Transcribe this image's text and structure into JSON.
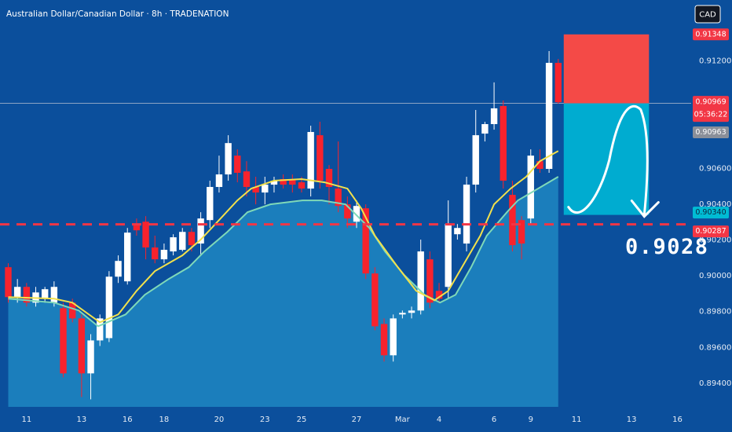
{
  "chart_data": {
    "type": "candlestick",
    "title": "Australian Dollar/Canadian Dollar · 8h · TRADENATION",
    "currency": "CAD",
    "x": [
      -2,
      -1,
      0,
      1,
      2,
      3,
      4,
      5,
      6,
      7,
      8,
      9,
      10,
      11,
      12,
      13,
      14,
      15,
      16,
      17,
      18,
      19,
      20,
      21,
      22,
      23,
      24,
      25,
      26,
      27,
      28,
      29,
      30,
      31,
      32,
      33,
      34,
      35,
      36,
      37,
      38,
      39,
      40,
      41,
      42,
      43,
      44,
      45,
      46,
      47,
      48,
      49,
      50,
      51,
      52,
      53,
      54,
      55,
      56,
      57,
      58
    ],
    "open": [
      0.90048,
      0.89881,
      0.89938,
      0.8985,
      0.89872,
      0.8985,
      0.89819,
      0.8985,
      0.89762,
      0.89455,
      0.89639,
      0.89652,
      0.89995,
      0.89969,
      0.90289,
      0.90302,
      0.90158,
      0.90092,
      0.90136,
      0.90145,
      0.90245,
      0.9018,
      0.90311,
      0.90496,
      0.90566,
      0.90671,
      0.90583,
      0.90496,
      0.90465,
      0.90509,
      0.9054,
      0.9054,
      0.90522,
      0.90487,
      0.90785,
      0.90597,
      0.90487,
      0.90399,
      0.90302,
      0.90377,
      0.90013,
      0.89731,
      0.89556,
      0.89784,
      0.89793,
      0.89806,
      0.90092,
      0.89916,
      0.89938,
      0.90232,
      0.9018,
      0.90509,
      0.90794,
      0.90847,
      0.90948,
      0.90452,
      0.90311,
      0.9032,
      0.9064,
      0.90597,
      0.91189
    ],
    "high": [
      0.9007,
      0.89982,
      0.8996,
      0.89938,
      0.89938,
      0.89969,
      0.8985,
      0.89872,
      0.89784,
      0.89674,
      0.89784,
      0.90026,
      0.90114,
      0.90267,
      0.9032,
      0.90333,
      0.90224,
      0.9018,
      0.90232,
      0.90267,
      0.90267,
      0.90355,
      0.90531,
      0.90671,
      0.90785,
      0.90706,
      0.9064,
      0.90553,
      0.90553,
      0.90553,
      0.90566,
      0.90566,
      0.90553,
      0.90838,
      0.9086,
      0.90618,
      0.9075,
      0.90443,
      0.90421,
      0.90399,
      0.90048,
      0.89762,
      0.89784,
      0.89806,
      0.89828,
      0.90202,
      0.90136,
      0.8996,
      0.90421,
      0.90289,
      0.90553,
      0.90926,
      0.9086,
      0.9108,
      0.90979,
      0.90531,
      0.90333,
      0.90706,
      0.90706,
      0.91255,
      0.91211
    ],
    "low": [
      0.8985,
      0.8985,
      0.89828,
      0.89828,
      0.8985,
      0.89828,
      0.89433,
      0.8974,
      0.89323,
      0.8931,
      0.89608,
      0.8963,
      0.8996,
      0.89951,
      0.90224,
      0.90092,
      0.9007,
      0.9007,
      0.90114,
      0.90136,
      0.90136,
      0.90114,
      0.90267,
      0.90465,
      0.90531,
      0.90522,
      0.90443,
      0.90399,
      0.90399,
      0.90465,
      0.90487,
      0.90465,
      0.90465,
      0.90443,
      0.90487,
      0.90399,
      0.90355,
      0.90267,
      0.90267,
      0.89982,
      0.89696,
      0.89521,
      0.89521,
      0.89762,
      0.89762,
      0.89784,
      0.89819,
      0.8985,
      0.89872,
      0.90202,
      0.90136,
      0.90465,
      0.9075,
      0.90816,
      0.90487,
      0.90136,
      0.90092,
      0.90289,
      0.90575,
      0.90575,
      0.90961
    ],
    "close": [
      0.89881,
      0.89938,
      0.8985,
      0.89907,
      0.89925,
      0.89938,
      0.89455,
      0.89762,
      0.89455,
      0.89639,
      0.89762,
      0.89995,
      0.90083,
      0.90241,
      0.90254,
      0.90158,
      0.90092,
      0.90145,
      0.90215,
      0.90245,
      0.90171,
      0.9032,
      0.90496,
      0.90566,
      0.90741,
      0.90575,
      0.90496,
      0.90465,
      0.90509,
      0.90531,
      0.90509,
      0.90509,
      0.90487,
      0.90803,
      0.90531,
      0.90496,
      0.9039,
      0.9032,
      0.9039,
      0.90013,
      0.89718,
      0.89556,
      0.89762,
      0.89793,
      0.89806,
      0.90136,
      0.8985,
      0.89872,
      0.90289,
      0.90267,
      0.90509,
      0.90785,
      0.90847,
      0.90935,
      0.90531,
      0.90171,
      0.9018,
      0.90671,
      0.90597,
      0.91189,
      0.90969
    ],
    "up_color": "#ffffff",
    "down_color": "#f7232d",
    "xlim": [
      -2.9,
      72.5
    ],
    "ylim": [
      0.89268,
      0.9154
    ],
    "yticks": [
      {
        "value": 0.894,
        "label": "0.89400"
      },
      {
        "value": 0.896,
        "label": "0.89600"
      },
      {
        "value": 0.898,
        "label": "0.89800"
      },
      {
        "value": 0.9,
        "label": "0.90000"
      },
      {
        "value": 0.902,
        "label": "0.90200"
      },
      {
        "value": 0.904,
        "label": "0.90400"
      },
      {
        "value": 0.906,
        "label": "0.90600"
      },
      {
        "value": 0.912,
        "label": "0.91200"
      }
    ],
    "xticks": [
      {
        "value": 0,
        "label": "11"
      },
      {
        "value": 6,
        "label": "13"
      },
      {
        "value": 11,
        "label": "16"
      },
      {
        "value": 15,
        "label": "18"
      },
      {
        "value": 21,
        "label": "20"
      },
      {
        "value": 26,
        "label": "23"
      },
      {
        "value": 30,
        "label": "25"
      },
      {
        "value": 36,
        "label": "27"
      },
      {
        "value": 41,
        "label": "Mar"
      },
      {
        "value": 45,
        "label": "4"
      },
      {
        "value": 51,
        "label": "6"
      },
      {
        "value": 55,
        "label": "9"
      },
      {
        "value": 60,
        "label": "11"
      },
      {
        "value": 66,
        "label": "13"
      },
      {
        "value": 71,
        "label": "16"
      }
    ],
    "indicators": [
      {
        "color": "#7fd9b8",
        "fill": "#1f86c2",
        "x": [
          -2,
          3,
          5.7,
          7.8,
          10.8,
          12.9,
          15.5,
          17.7,
          19.4,
          21.9,
          24.1,
          26.6,
          30.1,
          32.2,
          34.8,
          37.4,
          39.1,
          41.2,
          43.4,
          45.1,
          46.8,
          48.5,
          50.2,
          52.4,
          53.6,
          55.8,
          58
        ],
        "values": [
          0.89872,
          0.8985,
          0.89806,
          0.89718,
          0.89784,
          0.89894,
          0.89982,
          0.90048,
          0.90136,
          0.90245,
          0.90355,
          0.90399,
          0.90421,
          0.90421,
          0.90399,
          0.90267,
          0.90136,
          0.90004,
          0.89894,
          0.8985,
          0.89894,
          0.90048,
          0.90224,
          0.90355,
          0.90421,
          0.90487,
          0.90553
        ]
      },
      {
        "color": "#f2e14c",
        "x": [
          -2,
          3,
          5,
          8,
          10,
          12,
          14,
          17,
          19,
          21,
          23,
          24.5,
          27,
          30,
          32.5,
          35,
          36.5,
          38,
          40.5,
          42.5,
          44.5,
          46,
          47.5,
          49.5,
          51,
          52.8,
          54.5,
          56,
          58
        ],
        "values": [
          0.89881,
          0.89872,
          0.8985,
          0.8974,
          0.89784,
          0.89916,
          0.90026,
          0.90114,
          0.90202,
          0.90311,
          0.90421,
          0.90487,
          0.90531,
          0.9054,
          0.90522,
          0.90487,
          0.90377,
          0.90224,
          0.90048,
          0.89916,
          0.89863,
          0.89916,
          0.90048,
          0.90224,
          0.90399,
          0.90487,
          0.90553,
          0.9064,
          0.90697
        ]
      }
    ],
    "position": {
      "start": 58.6,
      "end": 67.9,
      "stop": 0.91348,
      "entry": 0.90963,
      "target": {
        "value": 0.9034,
        "label": "0.90340"
      }
    },
    "last_price": 0.90969,
    "countdown": "05:36:22",
    "level": 0.90287,
    "annotation": "0.9028"
  }
}
